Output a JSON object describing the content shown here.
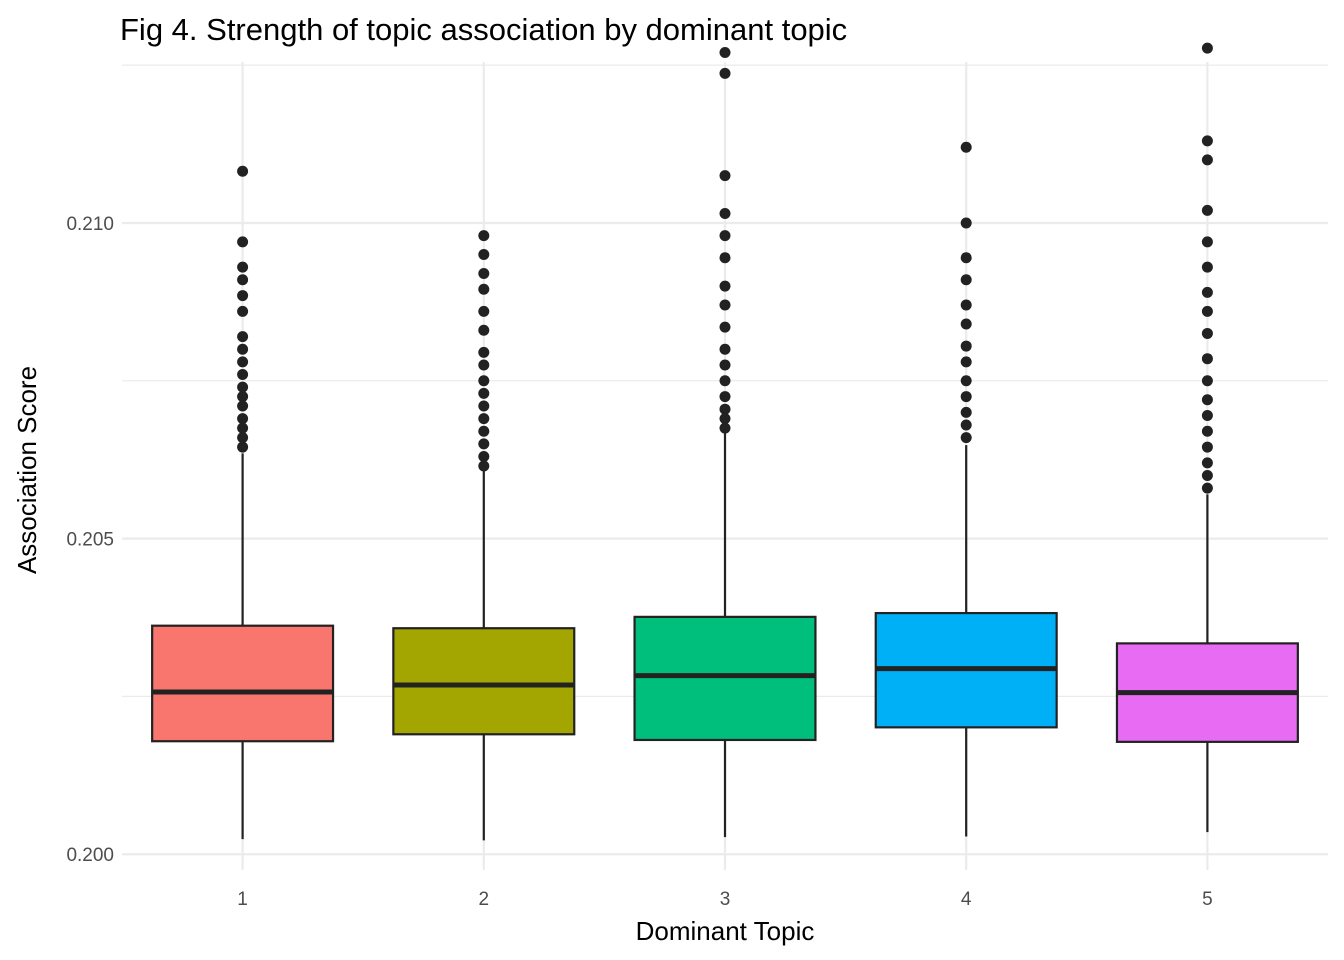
{
  "chart_data": {
    "type": "box",
    "title": "Fig 4. Strength of topic association by dominant topic",
    "xlabel": "Dominant Topic",
    "ylabel": "Association Score",
    "ylim": [
      0.19975,
      0.21255
    ],
    "y_ticks": [
      0.2,
      0.205,
      0.21
    ],
    "y_tick_labels": [
      "0.200",
      "0.205",
      "0.210"
    ],
    "y_minor_ticks": [
      0.2025,
      0.2075,
      0.2125
    ],
    "grid": true,
    "legend": "none",
    "categories": [
      "1",
      "2",
      "3",
      "4",
      "5"
    ],
    "series": [
      {
        "category": "1",
        "color": "#F8766D",
        "whisker_low": 0.20024,
        "q1": 0.20179,
        "median": 0.20257,
        "q3": 0.20362,
        "whisker_high": 0.20635,
        "outliers": [
          0.21082,
          0.2097,
          0.2093,
          0.2091,
          0.20885,
          0.2086,
          0.2082,
          0.208,
          0.2078,
          0.2076,
          0.2074,
          0.20725,
          0.2071,
          0.2069,
          0.20675,
          0.2066,
          0.20645
        ]
      },
      {
        "category": "2",
        "color": "#A3A500",
        "whisker_low": 0.20022,
        "q1": 0.2019,
        "median": 0.20268,
        "q3": 0.20358,
        "whisker_high": 0.2061,
        "outliers": [
          0.2098,
          0.2095,
          0.2092,
          0.20895,
          0.2086,
          0.2083,
          0.20795,
          0.20775,
          0.2075,
          0.2073,
          0.2071,
          0.2069,
          0.2067,
          0.2065,
          0.2063,
          0.20615
        ]
      },
      {
        "category": "3",
        "color": "#00BF7D",
        "whisker_low": 0.20027,
        "q1": 0.20181,
        "median": 0.20283,
        "q3": 0.20376,
        "whisker_high": 0.20667,
        "outliers": [
          0.2127,
          0.21237,
          0.21075,
          0.21015,
          0.2098,
          0.20945,
          0.209,
          0.2087,
          0.20835,
          0.208,
          0.20775,
          0.2075,
          0.20725,
          0.20705,
          0.2069,
          0.20675
        ]
      },
      {
        "category": "4",
        "color": "#00B0F6",
        "whisker_low": 0.20028,
        "q1": 0.20201,
        "median": 0.20294,
        "q3": 0.20382,
        "whisker_high": 0.20648,
        "outliers": [
          0.2112,
          0.21,
          0.20945,
          0.2091,
          0.2087,
          0.2084,
          0.20805,
          0.2078,
          0.2075,
          0.20725,
          0.207,
          0.2068,
          0.2066
        ]
      },
      {
        "category": "5",
        "color": "#E76BF3",
        "whisker_low": 0.20035,
        "q1": 0.20178,
        "median": 0.20256,
        "q3": 0.20334,
        "whisker_high": 0.2057,
        "outliers": [
          0.21277,
          0.2113,
          0.211,
          0.2102,
          0.2097,
          0.2093,
          0.2089,
          0.2086,
          0.20825,
          0.20785,
          0.2075,
          0.2072,
          0.20695,
          0.2067,
          0.20645,
          0.2062,
          0.206,
          0.2058
        ]
      }
    ]
  }
}
